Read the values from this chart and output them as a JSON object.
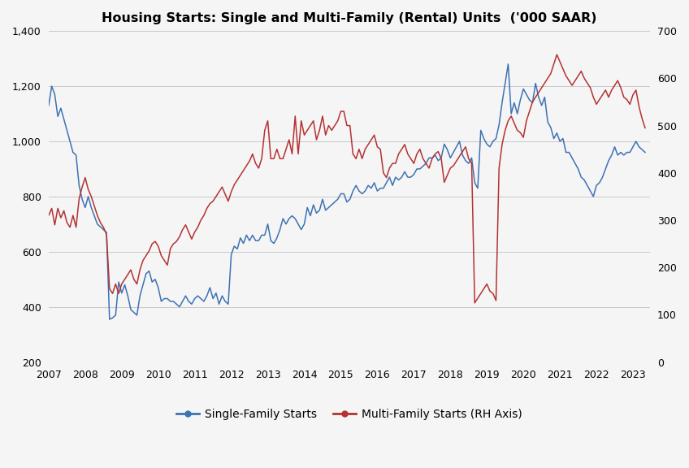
{
  "title": "Housing Starts: Single and Multi-Family (Rental) Units  ('000 SAAR)",
  "left_ylim": [
    200,
    1400
  ],
  "right_ylim": [
    0,
    700
  ],
  "left_yticks": [
    200,
    400,
    600,
    800,
    1000,
    1200,
    1400
  ],
  "right_yticks": [
    0,
    100,
    200,
    300,
    400,
    500,
    600,
    700
  ],
  "xtick_years": [
    "2007",
    "2008",
    "2009",
    "2010",
    "2011",
    "2012",
    "2013",
    "2014",
    "2015",
    "2016",
    "2017",
    "2018",
    "2019",
    "2020",
    "2021",
    "2022",
    "2023"
  ],
  "single_color": "#3d72b4",
  "multi_color": "#b43232",
  "bg_color": "#f5f5f5",
  "grid_color": "#c8c8c8",
  "legend_labels": [
    "Single-Family Starts",
    "Multi-Family Starts (RH Axis)"
  ],
  "single_family": [
    1130,
    1200,
    1170,
    1090,
    1120,
    1080,
    1040,
    1000,
    960,
    950,
    840,
    790,
    760,
    800,
    760,
    730,
    700,
    690,
    680,
    670,
    355,
    360,
    370,
    490,
    450,
    480,
    440,
    390,
    380,
    370,
    440,
    480,
    520,
    530,
    490,
    500,
    470,
    420,
    430,
    430,
    420,
    420,
    410,
    400,
    420,
    440,
    420,
    410,
    430,
    440,
    430,
    420,
    440,
    470,
    430,
    450,
    410,
    440,
    420,
    410,
    590,
    620,
    610,
    650,
    630,
    660,
    640,
    660,
    640,
    640,
    660,
    660,
    700,
    640,
    630,
    650,
    680,
    720,
    700,
    720,
    730,
    720,
    700,
    680,
    700,
    760,
    730,
    770,
    740,
    750,
    790,
    750,
    760,
    770,
    780,
    790,
    810,
    810,
    780,
    790,
    820,
    840,
    820,
    810,
    820,
    840,
    830,
    850,
    820,
    830,
    830,
    850,
    870,
    840,
    870,
    860,
    870,
    890,
    870,
    870,
    880,
    900,
    900,
    910,
    920,
    940,
    940,
    950,
    930,
    940,
    990,
    970,
    940,
    960,
    980,
    1000,
    950,
    930,
    920,
    940,
    850,
    830,
    1040,
    1010,
    990,
    980,
    1000,
    1010,
    1060,
    1140,
    1210,
    1280,
    1100,
    1140,
    1100,
    1150,
    1190,
    1170,
    1150,
    1140,
    1210,
    1160,
    1130,
    1160,
    1070,
    1050,
    1010,
    1030,
    1000,
    1010,
    960,
    960,
    940,
    920,
    900,
    870,
    860,
    840,
    820,
    800,
    840,
    850,
    870,
    900,
    930,
    950,
    980,
    950,
    960,
    950,
    960,
    960,
    980,
    1000,
    980,
    970,
    960
  ],
  "multi_family": [
    310,
    325,
    290,
    325,
    305,
    320,
    295,
    285,
    310,
    285,
    345,
    370,
    390,
    365,
    350,
    330,
    310,
    295,
    285,
    270,
    155,
    145,
    165,
    145,
    165,
    175,
    185,
    195,
    175,
    165,
    195,
    215,
    225,
    235,
    250,
    255,
    245,
    225,
    215,
    205,
    240,
    250,
    255,
    265,
    280,
    290,
    275,
    260,
    275,
    285,
    300,
    310,
    325,
    335,
    340,
    350,
    360,
    370,
    355,
    340,
    360,
    375,
    385,
    395,
    405,
    415,
    425,
    440,
    420,
    410,
    430,
    490,
    510,
    430,
    430,
    450,
    430,
    430,
    450,
    470,
    440,
    520,
    440,
    510,
    480,
    490,
    500,
    510,
    470,
    490,
    520,
    480,
    500,
    490,
    500,
    510,
    530,
    530,
    500,
    500,
    440,
    430,
    450,
    430,
    450,
    460,
    470,
    480,
    455,
    450,
    400,
    390,
    410,
    420,
    420,
    440,
    450,
    460,
    440,
    430,
    420,
    440,
    450,
    430,
    420,
    410,
    430,
    440,
    445,
    430,
    380,
    395,
    410,
    415,
    425,
    435,
    445,
    455,
    430,
    420,
    125,
    135,
    145,
    155,
    165,
    150,
    145,
    130,
    410,
    460,
    490,
    510,
    520,
    505,
    490,
    485,
    475,
    510,
    530,
    550,
    560,
    570,
    580,
    590,
    600,
    610,
    630,
    650,
    635,
    620,
    605,
    595,
    585,
    595,
    605,
    615,
    600,
    590,
    580,
    560,
    545,
    555,
    565,
    575,
    560,
    575,
    585,
    595,
    580,
    560,
    555,
    545,
    565,
    575,
    540,
    515,
    495
  ],
  "start_year": 2007,
  "months_per_year": 12
}
